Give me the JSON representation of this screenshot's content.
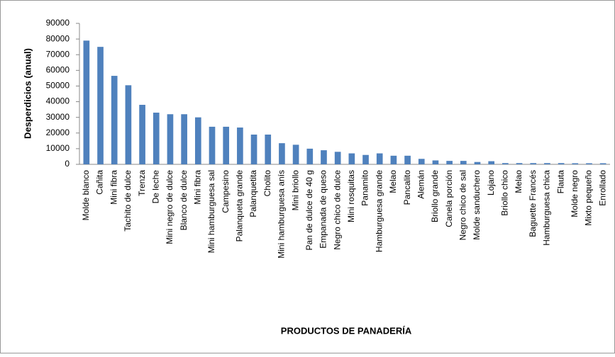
{
  "chart_data": {
    "type": "bar",
    "ylabel": "Desperdicios (anual)",
    "xlabel": "PRODUCTOS DE PANADERÍA",
    "categories": [
      "Molde blanco",
      "Cañita",
      "Mini fibra",
      "Tachito de dulce",
      "Trenza",
      "De leche",
      "Mini negro de dulce",
      "Blanco de dulce",
      "Mini fibra",
      "Mini hamburguesa sal",
      "Campesino",
      "Palanqueta grande",
      "Palanquetita",
      "Cholito",
      "Mini hamburguesa anís",
      "Mini briollo",
      "Pan de dulce de 40 g",
      "Empanada de queso",
      "Negro chico de dulce",
      "Mini rosquitas",
      "Panamito",
      "Hamburguesa grande",
      "Melao",
      "Pancalito",
      "Alemán",
      "Briollo grande",
      "Canela porción",
      "Negro chico de sal",
      "Molde sanduchero",
      "Lojano",
      "Briollo chico",
      "Melao",
      "Baguette Francés",
      "Hamburguesa chica",
      "Flauta",
      "Molde negro",
      "Mixto pequeño",
      "Enrollado"
    ],
    "values": [
      79000,
      75000,
      56500,
      50500,
      38000,
      33000,
      32000,
      32000,
      30000,
      24000,
      24000,
      23500,
      19000,
      19000,
      13500,
      12500,
      10000,
      9000,
      8000,
      7000,
      6000,
      7000,
      5500,
      5500,
      3500,
      2500,
      2200,
      2200,
      1500,
      2000,
      800,
      800,
      800,
      800,
      800,
      700,
      700,
      700
    ],
    "color": "#4f81bd",
    "ylim": [
      0,
      90000
    ],
    "yticks": [
      0,
      10000,
      20000,
      30000,
      40000,
      50000,
      60000,
      70000,
      80000,
      90000
    ],
    "grid": false
  }
}
